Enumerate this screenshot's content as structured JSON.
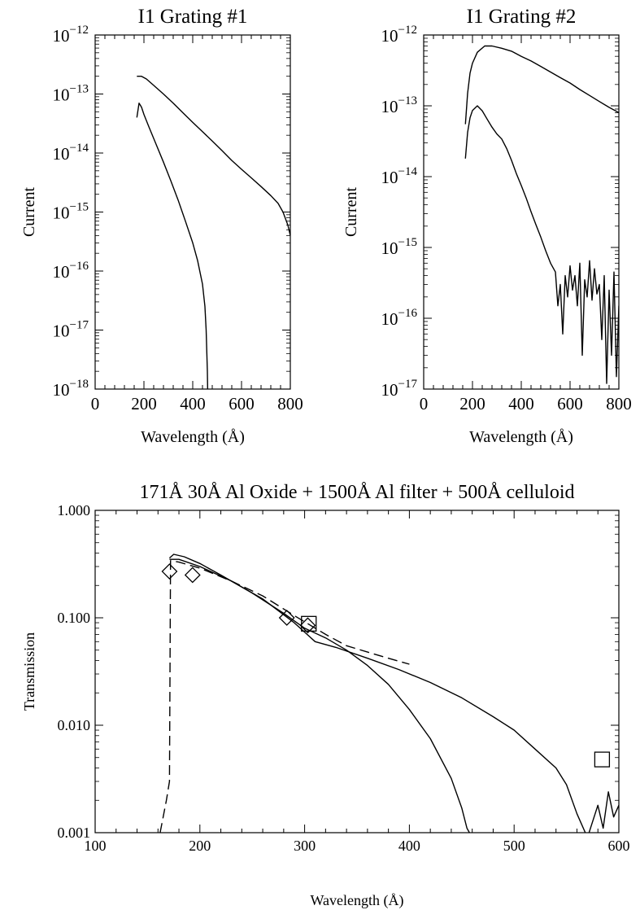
{
  "chart_data": [
    {
      "type": "line",
      "title": "I1   Grating #1",
      "xlabel": "Wavelength (Å)",
      "ylabel": "Current",
      "xlim": [
        0,
        800
      ],
      "ylim": [
        1e-18,
        1e-12
      ],
      "yscale": "log",
      "x_ticks": [
        0,
        200,
        400,
        600,
        800
      ],
      "y_tick_exponents": [
        -12,
        -13,
        -14,
        -15,
        -16,
        -17,
        -18
      ],
      "grid": false,
      "series": [
        {
          "x": [
            171,
            190,
            210,
            240,
            280,
            320,
            360,
            400,
            440,
            480,
            520,
            560,
            600,
            640,
            680,
            720,
            750,
            770,
            790,
            800
          ],
          "y": [
            2e-13,
            2e-13,
            1.8e-13,
            1.4e-13,
            1e-13,
            7e-14,
            4.8e-14,
            3.3e-14,
            2.3e-14,
            1.6e-14,
            1.1e-14,
            7.5e-15,
            5.3e-15,
            3.8e-15,
            2.7e-15,
            1.9e-15,
            1.4e-15,
            1e-15,
            6e-16,
            4e-16
          ]
        },
        {
          "x": [
            171,
            180,
            190,
            200,
            220,
            250,
            280,
            310,
            340,
            370,
            400,
            420,
            440,
            450,
            455,
            460,
            462
          ],
          "y": [
            4e-14,
            7e-14,
            6e-14,
            4.5e-14,
            2.8e-14,
            1.4e-14,
            7e-15,
            3.4e-15,
            1.6e-15,
            7e-16,
            3e-16,
            1.5e-16,
            6e-17,
            2.5e-17,
            1e-17,
            2e-18,
            6e-19
          ]
        }
      ]
    },
    {
      "type": "line",
      "title": "I1   Grating #2",
      "xlabel": "Wavelength (Å)",
      "ylabel": "Current",
      "xlim": [
        0,
        800
      ],
      "ylim": [
        1e-17,
        1e-12
      ],
      "yscale": "log",
      "x_ticks": [
        0,
        200,
        400,
        600,
        800
      ],
      "y_tick_exponents": [
        -12,
        -13,
        -14,
        -15,
        -16,
        -17
      ],
      "grid": false,
      "series": [
        {
          "x": [
            171,
            180,
            190,
            200,
            220,
            250,
            280,
            320,
            360,
            400,
            440,
            480,
            520,
            560,
            600,
            640,
            680,
            720,
            760,
            800
          ],
          "y": [
            5.5e-14,
            1.5e-13,
            2.9e-13,
            4e-13,
            5.7e-13,
            7e-13,
            7e-13,
            6.5e-13,
            5.9e-13,
            5e-13,
            4.3e-13,
            3.6e-13,
            3e-13,
            2.5e-13,
            2.1e-13,
            1.7e-13,
            1.4e-13,
            1.15e-13,
            9.5e-14,
            8e-14
          ]
        },
        {
          "x": [
            171,
            180,
            190,
            200,
            220,
            240,
            260,
            280,
            300,
            320,
            340,
            360,
            380,
            400,
            420,
            440,
            460,
            480,
            500,
            520,
            540,
            550,
            560,
            570,
            580,
            590,
            600,
            610,
            620,
            630,
            640,
            650,
            660,
            670,
            680,
            690,
            700,
            710,
            720,
            730,
            740,
            750,
            760,
            770,
            780,
            790,
            800
          ],
          "y": [
            1.8e-14,
            4.2e-14,
            6.8e-14,
            8.6e-14,
            1e-13,
            8.5e-14,
            6.5e-14,
            5e-14,
            4e-14,
            3.4e-14,
            2.5e-14,
            1.7e-14,
            1.1e-14,
            7.5e-15,
            5e-15,
            3.2e-15,
            2.1e-15,
            1.4e-15,
            9e-16,
            6e-16,
            4.5e-16,
            1.5e-16,
            3e-16,
            6e-17,
            4e-16,
            2e-16,
            5.5e-16,
            2.5e-16,
            4e-16,
            1.5e-16,
            6e-16,
            3e-17,
            3.5e-16,
            2e-16,
            6.5e-16,
            1.8e-16,
            5e-16,
            2.2e-16,
            3e-16,
            5e-17,
            4e-16,
            1.2e-17,
            2.5e-16,
            3e-17,
            4.5e-16,
            1.5e-17,
            1.5e-16
          ]
        }
      ]
    },
    {
      "type": "line",
      "title": "171Å  30Å Al Oxide + 1500Å Al filter + 500Å celluloid",
      "xlabel": "Wavelength (Å)",
      "ylabel": "Transmission",
      "xlim": [
        100,
        600
      ],
      "ylim": [
        0.001,
        1.0
      ],
      "yscale": "log",
      "x_ticks": [
        100,
        200,
        300,
        400,
        500,
        600
      ],
      "y_ticks": [
        "1.000",
        "0.100",
        "0.010",
        "0.001"
      ],
      "grid": false,
      "series": [
        {
          "style": "solid",
          "x": [
            171,
            175,
            185,
            200,
            220,
            250,
            280,
            300,
            320,
            340,
            360,
            380,
            400,
            420,
            440,
            450,
            455,
            460
          ],
          "y": [
            0.36,
            0.39,
            0.37,
            0.32,
            0.25,
            0.17,
            0.11,
            0.08,
            0.065,
            0.05,
            0.036,
            0.024,
            0.014,
            0.0075,
            0.0032,
            0.0017,
            0.0011,
            0.0009
          ]
        },
        {
          "style": "solid",
          "x": [
            171,
            180,
            200,
            230,
            260,
            290,
            310,
            330,
            360,
            390,
            420,
            450,
            480,
            500,
            520,
            540,
            550,
            560,
            570,
            580,
            585,
            590,
            595,
            600
          ],
          "y": [
            0.35,
            0.35,
            0.3,
            0.22,
            0.15,
            0.09,
            0.06,
            0.053,
            0.042,
            0.033,
            0.025,
            0.018,
            0.012,
            0.009,
            0.006,
            0.004,
            0.0028,
            0.0015,
            0.0009,
            0.0018,
            0.0011,
            0.0024,
            0.0014,
            0.0018
          ]
        },
        {
          "style": "dashed",
          "x": [
            162,
            168,
            171,
            172,
            180,
            200,
            230,
            260,
            290,
            320,
            340,
            360,
            380,
            400
          ],
          "y": [
            0.001,
            0.002,
            0.003,
            0.34,
            0.33,
            0.29,
            0.22,
            0.16,
            0.105,
            0.07,
            0.055,
            0.048,
            0.042,
            0.037
          ]
        },
        {
          "style": "diamond",
          "x": [
            171,
            193,
            283,
            303
          ],
          "y": [
            0.27,
            0.25,
            0.1,
            0.085
          ]
        },
        {
          "style": "square",
          "x": [
            304,
            584
          ],
          "y": [
            0.088,
            0.0048
          ]
        }
      ]
    }
  ]
}
